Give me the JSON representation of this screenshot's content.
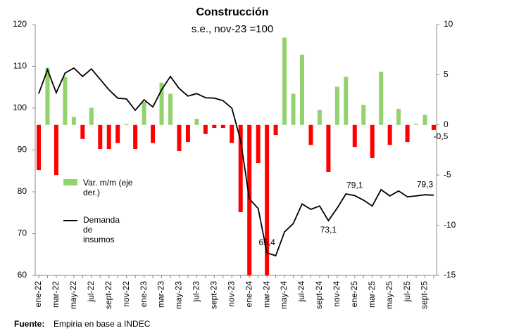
{
  "chart_data": {
    "type": "bar-line",
    "title": "Construcción",
    "subtitle": "s.e., nov-23 =100",
    "source_label": "Fuente:",
    "source": "Empiria en base a INDEC",
    "categories": [
      "ene-22",
      null,
      "mar-22",
      null,
      "may-22",
      null,
      "jul-22",
      null,
      "sept-22",
      null,
      "nov-22",
      null,
      "ene-23",
      null,
      "mar-23",
      null,
      "may-23",
      null,
      "jul-23",
      null,
      "sept-23",
      null,
      "nov-23",
      null,
      "ene-24",
      null,
      "mar-24",
      null,
      "may-24",
      null,
      "jul-24",
      null,
      "sept-24",
      null,
      "nov-24",
      null,
      "ene-25",
      null,
      "mar-25",
      null,
      "may-25",
      null,
      "jul-25",
      null,
      "sept-25",
      null
    ],
    "series": [
      {
        "name": "Var. m/m (eje der.)",
        "type": "bar",
        "axis": "y2",
        "color": "#92d36e",
        "negative_color": "#ff0000",
        "values": [
          -4.5,
          5.7,
          -5.0,
          4.8,
          0.8,
          -1.4,
          1.7,
          -2.4,
          -2.4,
          -1.8,
          0.1,
          -2.4,
          2.3,
          -1.8,
          4.2,
          3.1,
          -2.6,
          -1.7,
          0.6,
          -0.9,
          -0.3,
          -0.3,
          -1.8,
          -8.7,
          -15,
          -3.8,
          -15,
          -1.0,
          8.7,
          3.1,
          7.0,
          -2.0,
          1.5,
          -4.7,
          3.8,
          4.8,
          -2.2,
          2.0,
          -3.3,
          5.3,
          -2.0,
          1.6,
          -1.7,
          0.1,
          1.0,
          -0.5
        ],
        "value_labels": [
          null,
          null,
          null,
          null,
          null,
          null,
          null,
          null,
          null,
          null,
          null,
          null,
          null,
          null,
          null,
          null,
          null,
          null,
          null,
          null,
          null,
          null,
          null,
          null,
          null,
          null,
          null,
          null,
          null,
          null,
          null,
          null,
          null,
          null,
          null,
          null,
          null,
          null,
          null,
          null,
          null,
          null,
          null,
          null,
          null,
          "-0,5"
        ]
      },
      {
        "name": "Demanda de insumos",
        "type": "line",
        "color": "#000000",
        "values": [
          103.5,
          109.2,
          103.7,
          108.4,
          109.6,
          107.6,
          109.4,
          106.9,
          104.4,
          102.4,
          102.2,
          99.5,
          102.0,
          100.3,
          104.4,
          107.6,
          104.7,
          102.9,
          103.5,
          102.5,
          102.4,
          101.8,
          100.0,
          92.3,
          78.3,
          76.0,
          65.4,
          64.7,
          70.4,
          72.4,
          77.1,
          75.8,
          76.6,
          73.1,
          76.1,
          79.5,
          79.1,
          78.0,
          76.6,
          80.5,
          79.0,
          80.2,
          78.8,
          79.0,
          79.3,
          79.2
        ],
        "value_labels": [
          null,
          null,
          null,
          null,
          null,
          null,
          null,
          null,
          null,
          null,
          null,
          null,
          null,
          null,
          null,
          null,
          null,
          null,
          null,
          null,
          null,
          null,
          null,
          null,
          null,
          null,
          "65,4",
          null,
          null,
          null,
          null,
          null,
          null,
          "73,1",
          null,
          null,
          "79,1",
          null,
          null,
          null,
          null,
          null,
          null,
          null,
          "79,3",
          null
        ]
      }
    ],
    "ylim": [
      60,
      120
    ],
    "yticks": [
      60,
      70,
      80,
      90,
      100,
      110,
      120
    ],
    "y2lim": [
      -15,
      10
    ],
    "y2ticks": [
      -15,
      -10,
      -5,
      0,
      5,
      10
    ]
  }
}
